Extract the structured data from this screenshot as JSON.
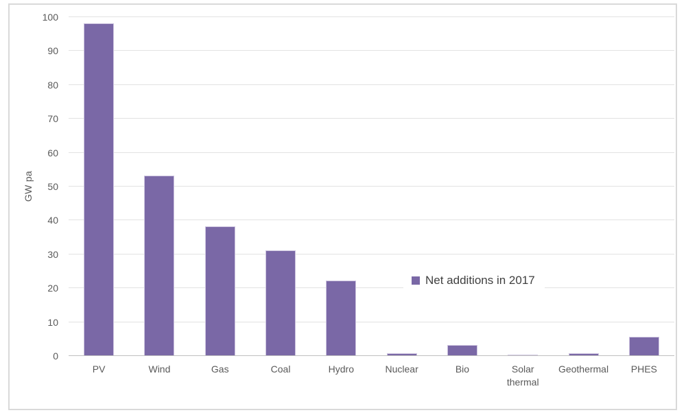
{
  "chart_data": {
    "type": "bar",
    "title": "",
    "xlabel": "",
    "ylabel": "GW pa",
    "ylim": [
      0,
      100
    ],
    "yticks": [
      0,
      10,
      20,
      30,
      40,
      50,
      60,
      70,
      80,
      90,
      100
    ],
    "grid": true,
    "legend_label": "Net additions in 2017",
    "legend_position": "inside-center-right",
    "categories": [
      "PV",
      "Wind",
      "Gas",
      "Coal",
      "Hydro",
      "Nuclear",
      "Bio",
      "Solar\nthermal",
      "Geothermal",
      "PHES"
    ],
    "values": [
      98,
      53,
      38,
      31,
      22,
      0.6,
      3,
      0.3,
      0.6,
      5.5
    ],
    "bar_color": "#7A68A6",
    "bar_edge_color": "#CDC4DF",
    "gridline_color": "#E2E2E2",
    "axis_line_color": "#BFBFBF",
    "frame_border_color": "#D9D9D9",
    "text_color": "#595959"
  }
}
